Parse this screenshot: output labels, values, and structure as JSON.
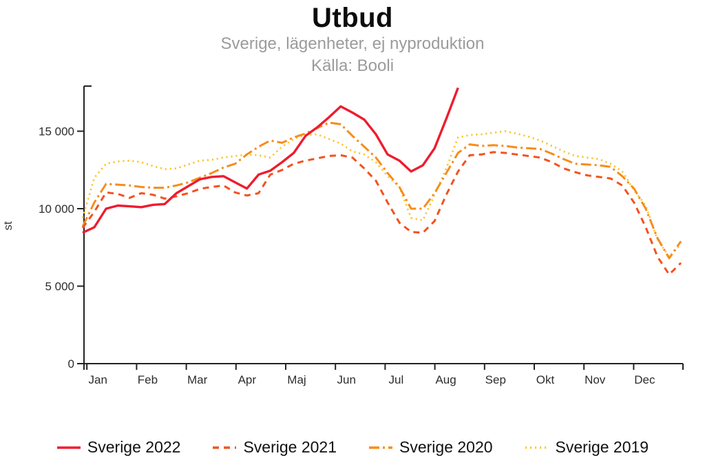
{
  "title": "Utbud",
  "subtitle_line1": "Sverige, lägenheter, ej nyproduktion",
  "subtitle_line2": "Källa: Booli",
  "chart_data": {
    "type": "line",
    "title": "Utbud",
    "subtitle": "Sverige, lägenheter, ej nyproduktion",
    "source": "Källa: Booli",
    "xlabel": "",
    "ylabel": "st",
    "x_unit": "week-of-year",
    "x_tick_labels": [
      "Jan",
      "Feb",
      "Mar",
      "Apr",
      "Maj",
      "Jun",
      "Jul",
      "Aug",
      "Sep",
      "Okt",
      "Nov",
      "Dec"
    ],
    "y_ticks": [
      0,
      5000,
      10000,
      15000
    ],
    "y_tick_labels": [
      "0",
      "5 000",
      "10 000",
      "15 000"
    ],
    "ylim": [
      0,
      17850
    ],
    "grid": false,
    "legend_position": "bottom",
    "axis_color": "#222222",
    "tick_text_color": "#2d2d2d",
    "series": [
      {
        "name": "Sverige 2022",
        "color": "#ee1c2e",
        "style": "solid",
        "values": [
          8450,
          8800,
          10000,
          10200,
          10150,
          10100,
          10250,
          10300,
          11000,
          11450,
          11900,
          12050,
          12100,
          11700,
          11300,
          12200,
          12450,
          13000,
          13600,
          14700,
          15250,
          15900,
          16600,
          16200,
          15750,
          14800,
          13500,
          13100,
          12400,
          12800,
          13900,
          15800,
          17800
        ]
      },
      {
        "name": "Sverige 2021",
        "color": "#f4511e",
        "style": "dashed",
        "values": [
          8750,
          9800,
          11050,
          10950,
          10700,
          11000,
          10900,
          10650,
          10800,
          11000,
          11280,
          11400,
          11500,
          11050,
          10850,
          11000,
          12200,
          12500,
          12900,
          13100,
          13250,
          13400,
          13450,
          13300,
          12600,
          11800,
          10400,
          9100,
          8500,
          8450,
          9200,
          10900,
          12400,
          13450,
          13500,
          13650,
          13600,
          13500,
          13400,
          13300,
          13000,
          12600,
          12350,
          12150,
          12050,
          11950,
          11500,
          10400,
          8800,
          6900,
          5750,
          6500
        ]
      },
      {
        "name": "Sverige 2020",
        "color": "#f78c1a",
        "style": "dashdot",
        "values": [
          8850,
          10400,
          11600,
          11550,
          11500,
          11400,
          11350,
          11350,
          11500,
          11700,
          12000,
          12300,
          12650,
          12900,
          13500,
          14000,
          14400,
          14250,
          14600,
          14850,
          15200,
          15550,
          15450,
          14700,
          14000,
          13300,
          12300,
          11400,
          10000,
          10000,
          11000,
          12300,
          13600,
          14150,
          14050,
          14100,
          14050,
          13950,
          13900,
          13850,
          13550,
          13200,
          12900,
          12850,
          12800,
          12700,
          12100,
          11300,
          10000,
          8100,
          6800,
          7900
        ]
      },
      {
        "name": "Sverige 2019",
        "color": "#fdc32b",
        "style": "dotted",
        "values": [
          9400,
          12000,
          12900,
          13050,
          13100,
          13000,
          12750,
          12550,
          12600,
          12850,
          13100,
          13150,
          13300,
          13400,
          13500,
          13450,
          13300,
          14000,
          14500,
          14750,
          14800,
          14500,
          14200,
          13700,
          13500,
          13000,
          12100,
          11400,
          9400,
          9250,
          10900,
          12600,
          14600,
          14750,
          14800,
          14900,
          15000,
          14850,
          14650,
          14400,
          14050,
          13700,
          13400,
          13300,
          13200,
          12900,
          12400,
          11200,
          10200,
          8000,
          6900,
          7700
        ]
      }
    ]
  }
}
